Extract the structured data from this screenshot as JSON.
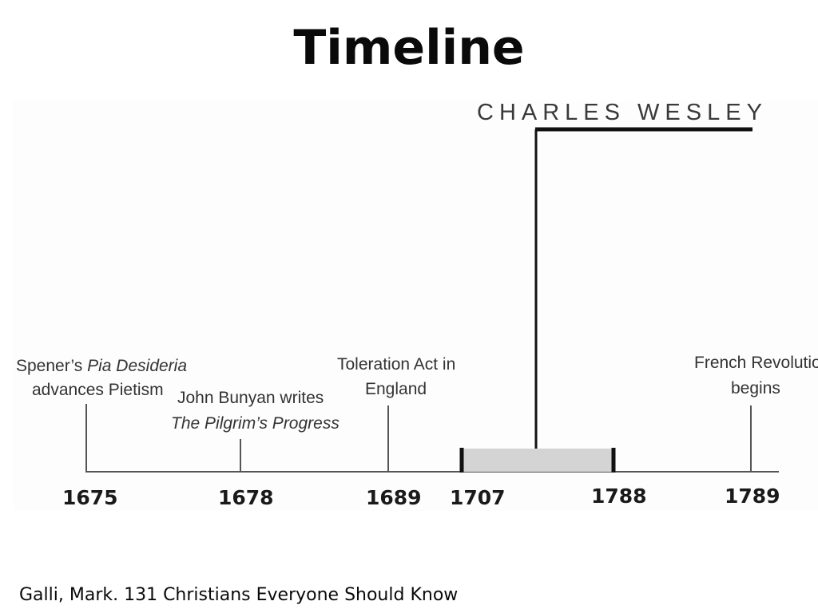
{
  "title": "Timeline",
  "citation": "Galli, Mark. 131 Christians Everyone Should Know",
  "diagram": {
    "person": {
      "name": "CHARLES WESLEY",
      "born": "1707",
      "died": "1788"
    },
    "events": [
      {
        "year": "1675",
        "label_line1_plain": "Spener’s ",
        "label_line1_italic": "Pia Desideria",
        "label_line2": "advances Pietism"
      },
      {
        "year": "1678",
        "label_line1_plain": "John Bunyan writes",
        "label_line2_italic": "The Pilgrim’s Progress"
      },
      {
        "year": "1689",
        "label_line1_plain": "Toleration Act in",
        "label_line2": "England"
      },
      {
        "year": "1789",
        "label_line1_plain": "French Revolution",
        "label_line2": "begins"
      }
    ],
    "colors": {
      "axis": "#555555",
      "line": "#1a1a1a",
      "lifespan_fill": "#d4d4d4"
    }
  }
}
